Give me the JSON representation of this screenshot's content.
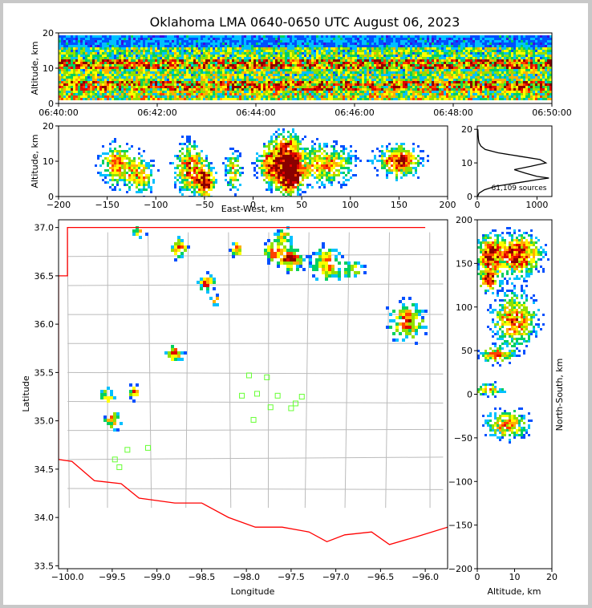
{
  "title": "Oklahoma LMA 0640-0650 UTC August 06, 2023",
  "colors": {
    "density_scale": [
      "#ffffff",
      "#3a0ae0",
      "#0050ff",
      "#00c0ff",
      "#00d060",
      "#90e000",
      "#ffff00",
      "#ffb000",
      "#ff4000",
      "#e00000",
      "#8a0000",
      "#000000"
    ],
    "state_border": "#ff0000",
    "county_lines": "#bbbbbb",
    "station_marker": "#66ff33",
    "profile_line": "#000000"
  },
  "panels": {
    "time_height": {
      "ylabel": "Altitude, km",
      "yticks": [
        "0",
        "10",
        "20"
      ],
      "xticks": [
        "06:40:00",
        "06:42:00",
        "06:44:00",
        "06:46:00",
        "06:48:00",
        "06:50:00"
      ]
    },
    "ew_height": {
      "ylabel": "Altitude, km",
      "xlabel": "East-West, km",
      "yticks": [
        "0",
        "10",
        "20"
      ],
      "xticks": [
        "−200",
        "−150",
        "−100",
        "−50",
        "0",
        "50",
        "100",
        "150",
        "200"
      ]
    },
    "histogram": {
      "yticks": [
        "0",
        "10",
        "20"
      ],
      "xticks": [
        "0",
        "1000"
      ],
      "annotation": "61,109 sources"
    },
    "plan": {
      "xlabel": "Longitude",
      "ylabel": "Latitude",
      "xticks": [
        "−100.0",
        "−99.5",
        "−99.0",
        "−98.5",
        "−98.0",
        "−97.5",
        "−97.0",
        "−96.5",
        "−96.0"
      ],
      "yticks": [
        "33.5",
        "34.0",
        "34.5",
        "35.0",
        "35.5",
        "36.0",
        "36.5",
        "37.0"
      ]
    },
    "ns_height": {
      "xlabel": "Altitude, km",
      "ylabel": "North-South, km",
      "xticks": [
        "0",
        "10",
        "20"
      ],
      "yticks": [
        "200",
        "150",
        "100",
        "50",
        "0",
        "−50",
        "−100",
        "−150",
        "−200"
      ]
    }
  },
  "chart_data": [
    {
      "type": "heatmap",
      "name": "time-height source density",
      "x_range": [
        "06:40:00",
        "06:50:00"
      ],
      "ylim": [
        0,
        20
      ],
      "ylabel": "Altitude, km",
      "bands_km": [
        [
          1,
          4,
          0.6
        ],
        [
          4,
          7,
          0.8
        ],
        [
          7,
          10,
          0.55
        ],
        [
          10,
          13,
          0.85
        ],
        [
          13,
          16,
          0.5
        ],
        [
          16,
          20,
          0.25
        ]
      ]
    },
    {
      "type": "heatmap",
      "name": "east-west vs altitude",
      "xlim": [
        -200,
        200
      ],
      "ylim": [
        0,
        20
      ],
      "xlabel": "East-West, km",
      "ylabel": "Altitude, km",
      "clusters": [
        {
          "x": -140,
          "y": 9,
          "sx": 12,
          "sy": 4,
          "w": 0.7
        },
        {
          "x": -115,
          "y": 6,
          "sx": 10,
          "sy": 3.5,
          "w": 0.6
        },
        {
          "x": -65,
          "y": 8,
          "sx": 10,
          "sy": 5,
          "w": 0.8
        },
        {
          "x": -48,
          "y": 4,
          "sx": 6,
          "sy": 3,
          "w": 1.0
        },
        {
          "x": -20,
          "y": 7,
          "sx": 6,
          "sy": 4,
          "w": 0.6
        },
        {
          "x": 15,
          "y": 9,
          "sx": 8,
          "sy": 4,
          "w": 0.7
        },
        {
          "x": 35,
          "y": 11,
          "sx": 10,
          "sy": 5,
          "w": 1.0
        },
        {
          "x": 38,
          "y": 5,
          "sx": 8,
          "sy": 3,
          "w": 0.9
        },
        {
          "x": 75,
          "y": 9,
          "sx": 20,
          "sy": 4,
          "w": 0.7
        },
        {
          "x": 150,
          "y": 10,
          "sx": 15,
          "sy": 3,
          "w": 0.9
        }
      ]
    },
    {
      "type": "line",
      "name": "source count by altitude",
      "xlim": [
        0,
        1250
      ],
      "ylim": [
        0,
        21
      ],
      "annotation": "61,109 sources",
      "x": [
        5,
        30,
        120,
        300,
        650,
        1000,
        1200,
        1000,
        800,
        620,
        900,
        1150,
        1050,
        700,
        350,
        130,
        60,
        30,
        20,
        15,
        10
      ],
      "y": [
        0,
        1,
        2,
        3,
        4,
        5,
        5.5,
        6,
        7,
        8,
        9,
        10,
        11,
        12,
        13,
        14,
        15,
        16,
        17,
        18,
        20
      ]
    },
    {
      "type": "scatter",
      "name": "plan view source density",
      "xlim": [
        -100.1,
        -95.75
      ],
      "ylim": [
        33.47,
        37.08
      ],
      "xlabel": "Longitude",
      "ylabel": "Latitude",
      "clusters": [
        {
          "lon": -99.2,
          "lat": 36.95,
          "s": 0.05,
          "w": 0.6
        },
        {
          "lon": -98.75,
          "lat": 36.78,
          "s": 0.07,
          "w": 0.7
        },
        {
          "lon": -98.45,
          "lat": 36.43,
          "s": 0.06,
          "w": 0.9
        },
        {
          "lon": -98.35,
          "lat": 36.25,
          "s": 0.04,
          "w": 0.7
        },
        {
          "lon": -98.1,
          "lat": 36.78,
          "s": 0.05,
          "w": 0.8
        },
        {
          "lon": -97.7,
          "lat": 36.75,
          "s": 0.07,
          "w": 0.8
        },
        {
          "lon": -97.5,
          "lat": 36.68,
          "s": 0.08,
          "w": 1.0
        },
        {
          "lon": -97.58,
          "lat": 36.92,
          "s": 0.06,
          "w": 0.6
        },
        {
          "lon": -97.1,
          "lat": 36.62,
          "s": 0.12,
          "w": 0.7
        },
        {
          "lon": -96.8,
          "lat": 36.55,
          "s": 0.08,
          "w": 0.5
        },
        {
          "lon": -96.2,
          "lat": 36.03,
          "s": 0.13,
          "w": 0.8
        },
        {
          "lon": -98.8,
          "lat": 35.7,
          "s": 0.06,
          "w": 0.8
        },
        {
          "lon": -99.55,
          "lat": 35.25,
          "s": 0.06,
          "w": 0.6
        },
        {
          "lon": -99.5,
          "lat": 35.0,
          "s": 0.07,
          "w": 0.7
        },
        {
          "lon": -99.25,
          "lat": 35.3,
          "s": 0.05,
          "w": 0.8
        }
      ],
      "stations": [
        {
          "lon": -97.97,
          "lat": 35.47
        },
        {
          "lon": -97.77,
          "lat": 35.45
        },
        {
          "lon": -97.88,
          "lat": 35.28
        },
        {
          "lon": -98.05,
          "lat": 35.26
        },
        {
          "lon": -97.65,
          "lat": 35.26
        },
        {
          "lon": -97.38,
          "lat": 35.25
        },
        {
          "lon": -97.45,
          "lat": 35.18
        },
        {
          "lon": -97.73,
          "lat": 35.14
        },
        {
          "lon": -97.5,
          "lat": 35.13
        },
        {
          "lon": -97.92,
          "lat": 35.01
        },
        {
          "lon": -99.33,
          "lat": 34.7
        },
        {
          "lon": -99.1,
          "lat": 34.72
        },
        {
          "lon": -99.47,
          "lat": 34.6
        },
        {
          "lon": -99.42,
          "lat": 34.52
        }
      ]
    },
    {
      "type": "heatmap",
      "name": "altitude vs north-south",
      "xlim": [
        0,
        20
      ],
      "ylim": [
        -200,
        200
      ],
      "xlabel": "Altitude, km",
      "ylabel": "North-South, km",
      "clusters": [
        {
          "x": 11,
          "y": 160,
          "sx": 4,
          "sy": 15,
          "w": 1.0
        },
        {
          "x": 3,
          "y": 160,
          "sx": 2,
          "sy": 15,
          "w": 0.9
        },
        {
          "x": 10,
          "y": 85,
          "sx": 4,
          "sy": 20,
          "w": 0.8
        },
        {
          "x": 3,
          "y": 130,
          "sx": 2,
          "sy": 8,
          "w": 0.7
        },
        {
          "x": 5,
          "y": 45,
          "sx": 3,
          "sy": 6,
          "w": 0.7
        },
        {
          "x": 3,
          "y": 5,
          "sx": 3,
          "sy": 5,
          "w": 0.6
        },
        {
          "x": 8,
          "y": -35,
          "sx": 4,
          "sy": 12,
          "w": 0.7
        }
      ]
    }
  ]
}
